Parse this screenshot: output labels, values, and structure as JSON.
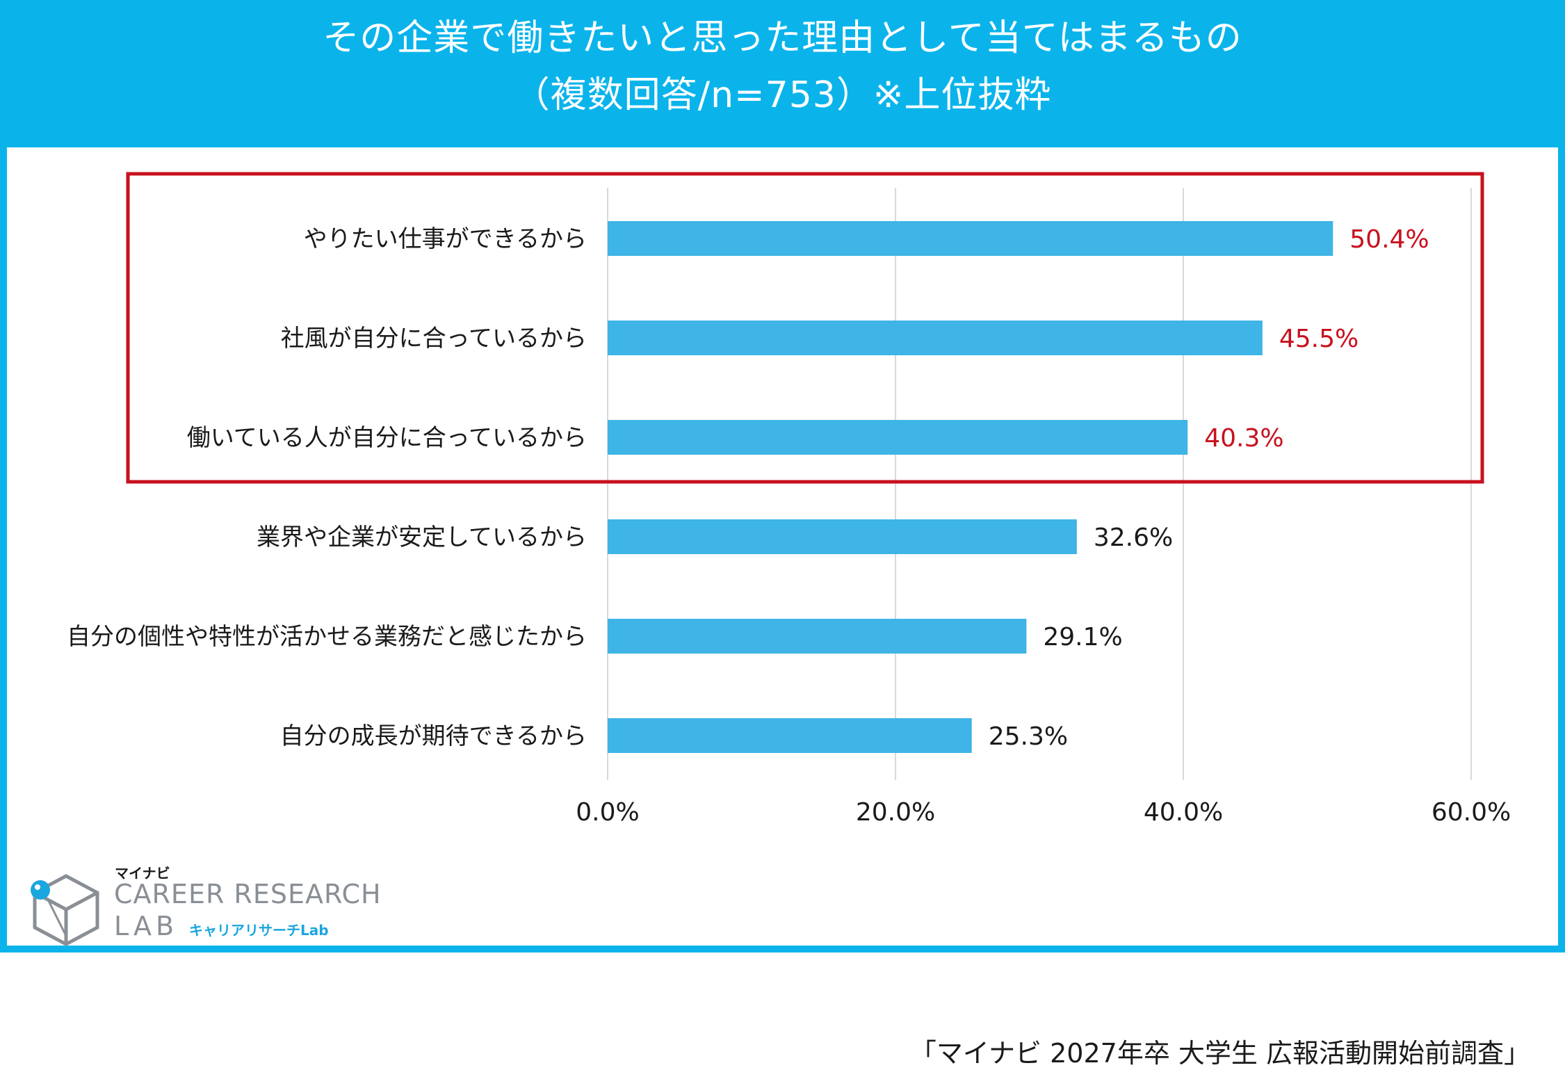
{
  "header": {
    "title_line1": "その企業で働きたいと思った理由として当てはまるもの",
    "title_line2": "（複数回答/n=753）※上位抜粋"
  },
  "colors": {
    "frame": "#0ab4eb",
    "bar": "#3fb4e6",
    "highlight": "#c8101e",
    "grid": "#d9d9d9",
    "text": "#1a1a1a"
  },
  "chart_data": {
    "type": "bar",
    "orientation": "horizontal",
    "title": "その企業で働きたいと思った理由として当てはまるもの（複数回答/n=753）※上位抜粋",
    "categories": [
      "やりたい仕事ができるから",
      "社風が自分に合っているから",
      "働いている人が自分に合っているから",
      "業界や企業が安定しているから",
      "自分の個性や特性が活かせる業務だと感じたから",
      "自分の成長が期待できるから"
    ],
    "values": [
      50.4,
      45.5,
      40.3,
      32.6,
      29.1,
      25.3
    ],
    "value_labels": [
      "50.4%",
      "45.5%",
      "40.3%",
      "32.6%",
      "29.1%",
      "25.3%"
    ],
    "highlighted": [
      true,
      true,
      true,
      false,
      false,
      false
    ],
    "xlim": [
      0,
      60
    ],
    "x_ticks": [
      0,
      20,
      40,
      60
    ],
    "x_tick_labels": [
      "0.0%",
      "20.0%",
      "40.0%",
      "60.0%"
    ],
    "grid": true,
    "xlabel": "",
    "ylabel": ""
  },
  "logo": {
    "small": "マイナビ",
    "main": "CAREER RESEARCH",
    "lab": "LAB",
    "sub": "キャリアリサーチLab"
  },
  "source": "「マイナビ 2027年卒 大学生 広報活動開始前調査」"
}
